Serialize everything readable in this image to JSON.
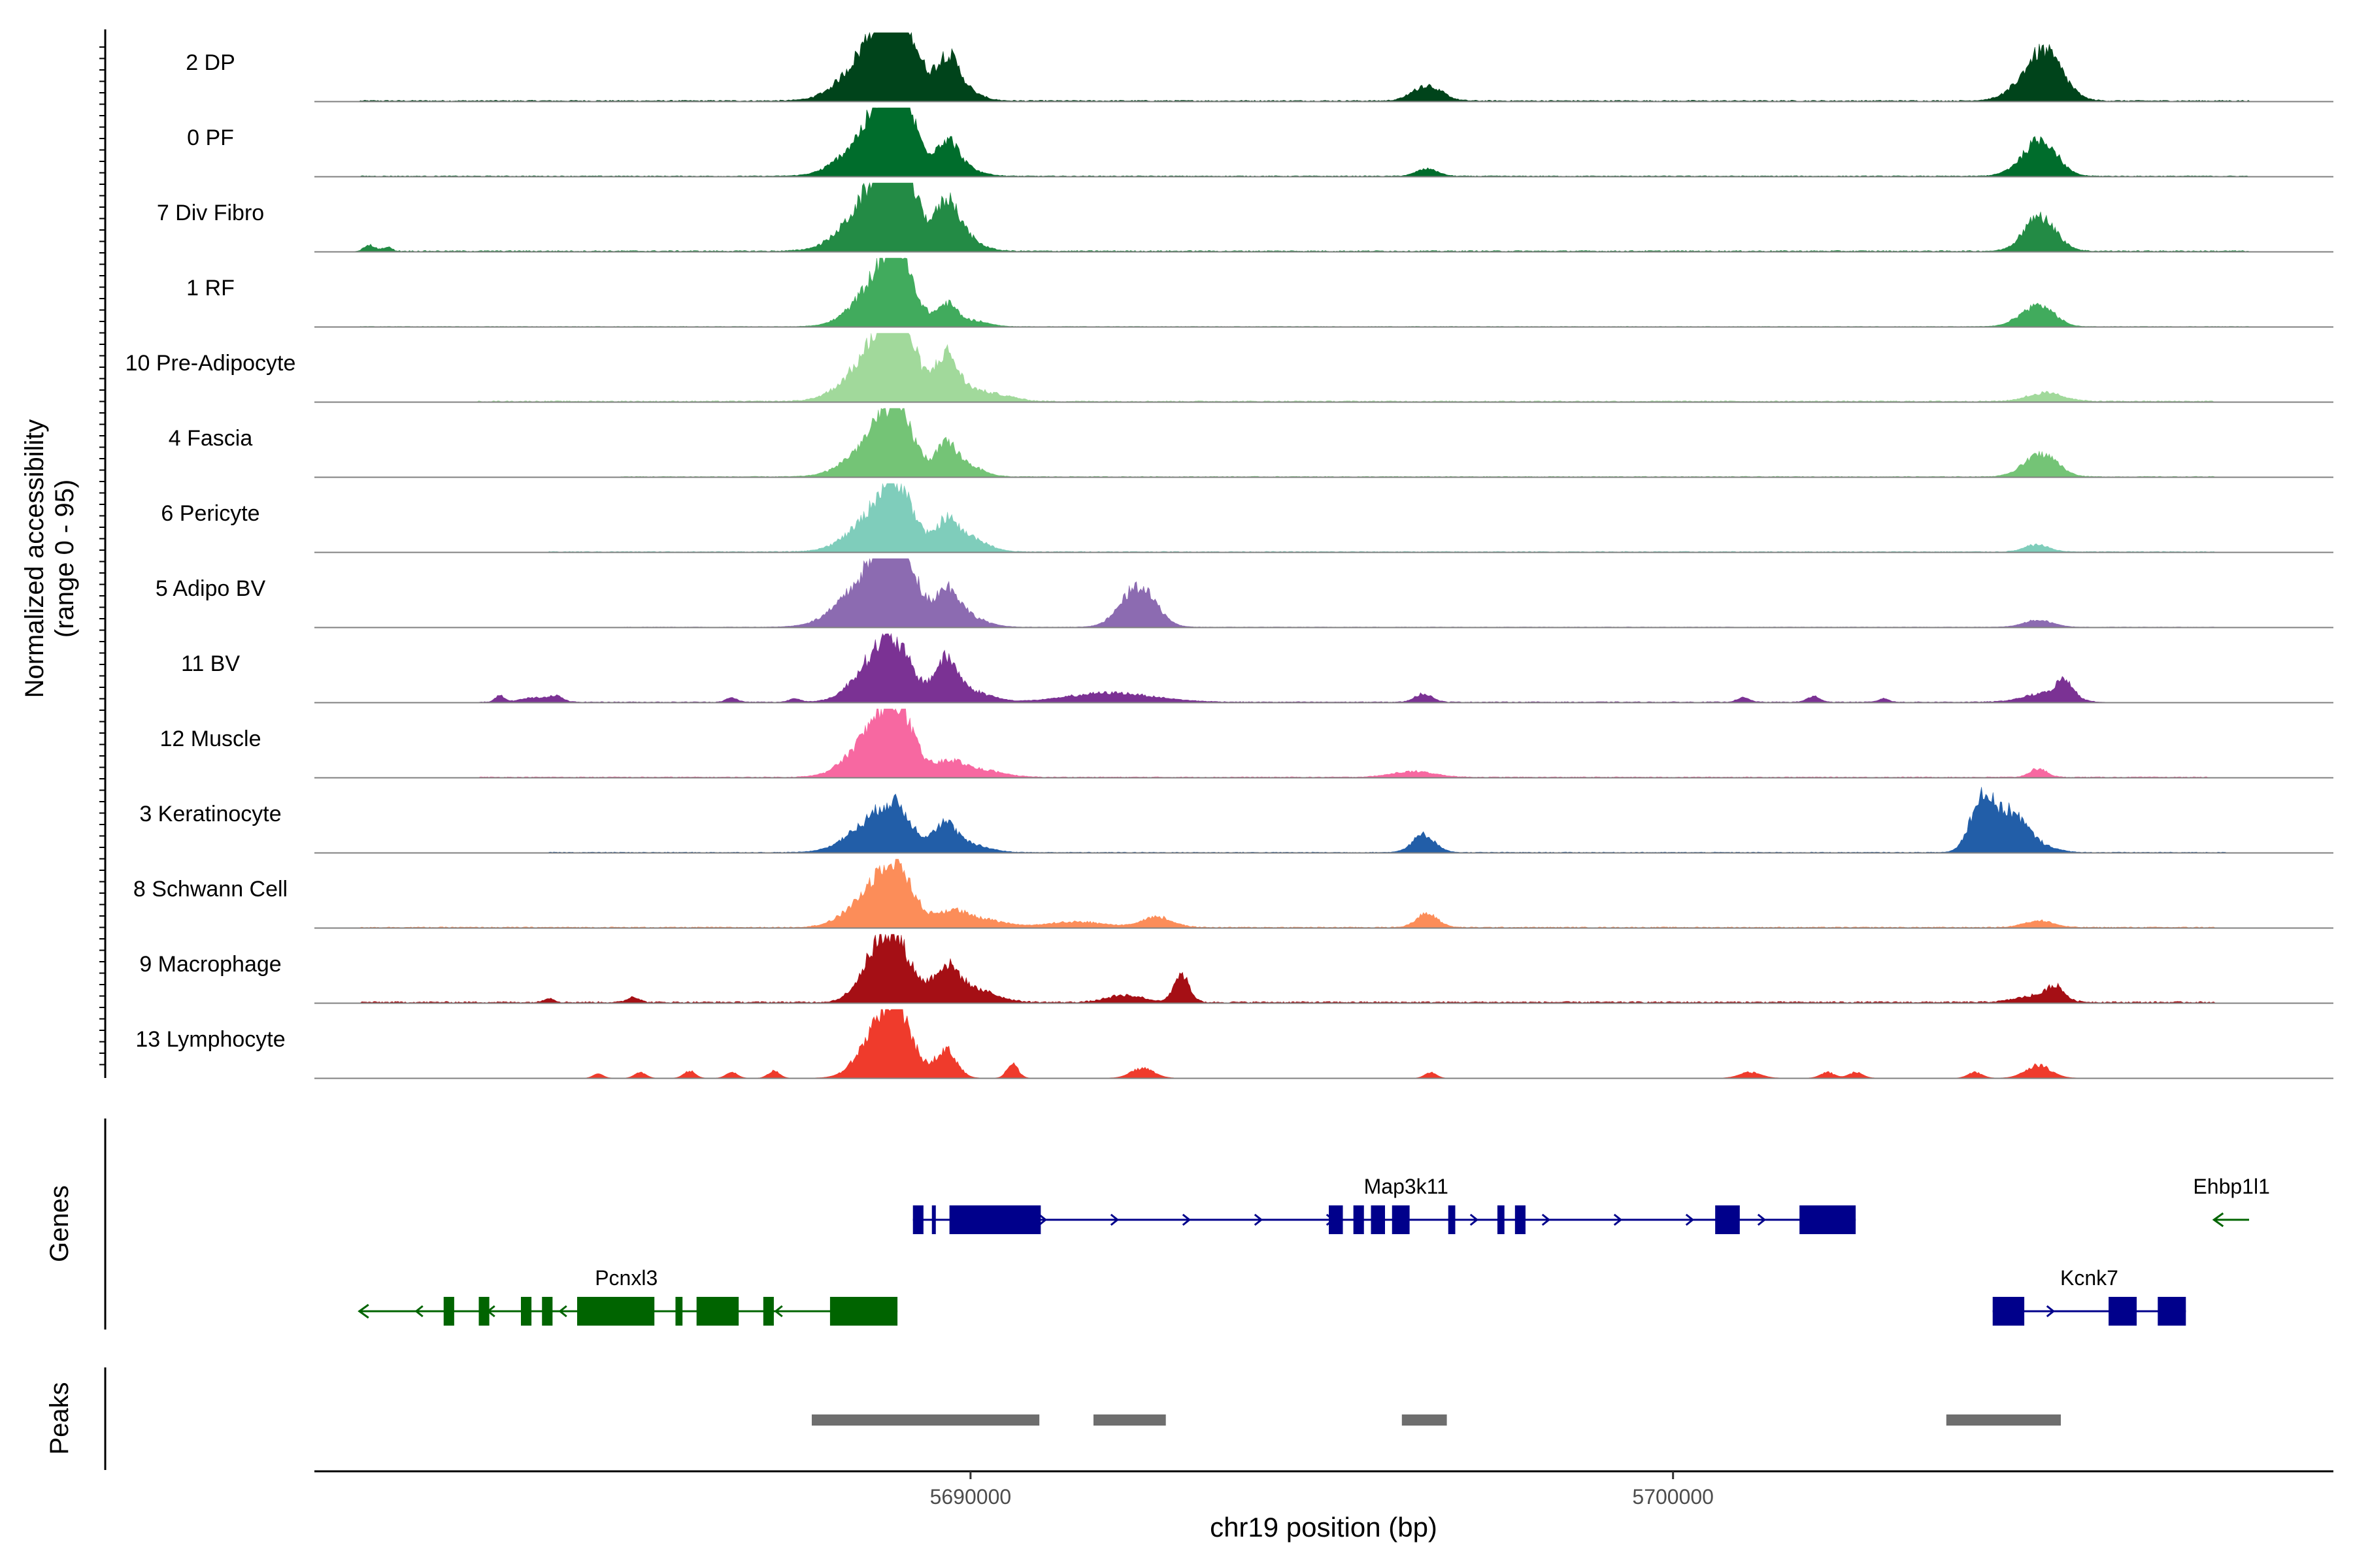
{
  "chart_data": {
    "type": "area",
    "xlabel": "chr19 position (bp)",
    "ylabel": "Normalized accessibility",
    "ylabel_range": "(range 0 - 95)",
    "xlim": [
      5680660,
      5709400
    ],
    "ylim": [
      0,
      95
    ],
    "x_ticks": [
      5690000,
      5700000
    ],
    "x_tick_labels": [
      "5690000",
      "5700000"
    ],
    "panel_labels": {
      "genes": "Genes",
      "peaks": "Peaks"
    },
    "tracks": [
      {
        "name": "2 DP",
        "color": "#00441B",
        "peaks": [
          [
            5688680,
            400,
            80
          ],
          [
            5688950,
            230,
            95
          ],
          [
            5689670,
            150,
            45
          ],
          [
            5689800,
            250,
            20
          ],
          [
            5696500,
            200,
            22
          ],
          [
            5705300,
            250,
            60
          ],
          [
            5705080,
            300,
            15
          ]
        ],
        "baseline": 1.5,
        "noise_range": [
          5681300,
          5708200
        ]
      },
      {
        "name": "0 PF",
        "color": "#006D2C",
        "peaks": [
          [
            5688680,
            400,
            70
          ],
          [
            5688950,
            230,
            85
          ],
          [
            5689670,
            150,
            40
          ],
          [
            5689850,
            250,
            12
          ],
          [
            5696500,
            150,
            10
          ],
          [
            5705150,
            250,
            30
          ],
          [
            5705300,
            200,
            25
          ]
        ],
        "baseline": 1.0,
        "noise_range": [
          5681300,
          5708200
        ]
      },
      {
        "name": "7 Div Fibro",
        "color": "#238B45",
        "peaks": [
          [
            5688680,
            400,
            80
          ],
          [
            5688950,
            230,
            95
          ],
          [
            5689670,
            160,
            55
          ],
          [
            5689850,
            250,
            20
          ],
          [
            5705150,
            200,
            35
          ],
          [
            5705350,
            200,
            20
          ]
        ],
        "baseline": 1.5,
        "noise_range": [
          5681300,
          5708200
        ],
        "bumps": [
          [
            5681450,
            80,
            8
          ],
          [
            5681700,
            60,
            6
          ]
        ]
      },
      {
        "name": "1 RF",
        "color": "#41AB5D",
        "peaks": [
          [
            5688720,
            350,
            60
          ],
          [
            5688950,
            220,
            65
          ],
          [
            5689670,
            140,
            30
          ],
          [
            5690050,
            200,
            8
          ],
          [
            5705120,
            220,
            22
          ],
          [
            5705320,
            180,
            12
          ]
        ],
        "baseline": 0.5,
        "noise_range": [
          5681300,
          5708200
        ]
      },
      {
        "name": "10 Pre-Adipocyte",
        "color": "#A1D99B",
        "peaks": [
          [
            5688700,
            400,
            70
          ],
          [
            5688950,
            230,
            80
          ],
          [
            5689650,
            140,
            50
          ],
          [
            5689850,
            260,
            20
          ],
          [
            5690400,
            250,
            8
          ],
          [
            5705300,
            250,
            12
          ]
        ],
        "baseline": 1.5,
        "noise_range": [
          5683000,
          5707700
        ]
      },
      {
        "name": "4 Fascia",
        "color": "#74C476",
        "peaks": [
          [
            5688700,
            380,
            55
          ],
          [
            5688950,
            220,
            60
          ],
          [
            5689650,
            140,
            35
          ],
          [
            5689900,
            230,
            18
          ],
          [
            5705150,
            220,
            20
          ],
          [
            5705350,
            200,
            16
          ]
        ],
        "baseline": 0.8,
        "noise_range": [
          5685000,
          5707700
        ]
      },
      {
        "name": "6 Pericyte",
        "color": "#7FCDBB",
        "peaks": [
          [
            5688700,
            380,
            52
          ],
          [
            5688950,
            220,
            62
          ],
          [
            5689650,
            140,
            35
          ],
          [
            5689950,
            250,
            22
          ],
          [
            5705180,
            170,
            10
          ]
        ],
        "baseline": 1.0,
        "noise_range": [
          5684000,
          5707700
        ]
      },
      {
        "name": "5 Adipo BV",
        "color": "#8C6BB1",
        "peaks": [
          [
            5688620,
            420,
            70
          ],
          [
            5688950,
            250,
            85
          ],
          [
            5689670,
            160,
            45
          ],
          [
            5689950,
            250,
            15
          ],
          [
            5692350,
            170,
            38
          ],
          [
            5692600,
            180,
            25
          ],
          [
            5692150,
            200,
            15
          ],
          [
            5705200,
            200,
            10
          ]
        ],
        "baseline": 0.5,
        "noise_range": [
          5685000,
          5707700
        ]
      },
      {
        "name": "11 BV",
        "color": "#7B3294",
        "peaks": [
          [
            5688620,
            300,
            50
          ],
          [
            5688950,
            250,
            58
          ],
          [
            5689650,
            160,
            55
          ],
          [
            5690000,
            280,
            15
          ],
          [
            5692000,
            600,
            13
          ],
          [
            5696450,
            120,
            12
          ],
          [
            5705300,
            300,
            12
          ],
          [
            5705580,
            120,
            25
          ]
        ],
        "baseline": 1.0,
        "noise_range": [
          5683000,
          5706000
        ],
        "bumps": [
          [
            5683300,
            60,
            10
          ],
          [
            5683800,
            200,
            6
          ],
          [
            5684100,
            90,
            8
          ],
          [
            5686600,
            80,
            6
          ],
          [
            5687500,
            80,
            5
          ],
          [
            5701000,
            90,
            6
          ],
          [
            5702000,
            90,
            8
          ],
          [
            5703000,
            70,
            5
          ]
        ]
      },
      {
        "name": "12 Muscle",
        "color": "#F768A1",
        "peaks": [
          [
            5688650,
            350,
            60
          ],
          [
            5688950,
            230,
            70
          ],
          [
            5689700,
            200,
            20
          ],
          [
            5690150,
            300,
            10
          ],
          [
            5696300,
            300,
            8
          ],
          [
            5705200,
            120,
            12
          ]
        ],
        "baseline": 1.0,
        "noise_range": [
          5683000,
          5707600
        ]
      },
      {
        "name": "3 Keratinocyte",
        "color": "#225EA8",
        "peaks": [
          [
            5688600,
            350,
            40
          ],
          [
            5688950,
            230,
            45
          ],
          [
            5689630,
            170,
            38
          ],
          [
            5690000,
            260,
            10
          ],
          [
            5696450,
            160,
            25
          ],
          [
            5704380,
            160,
            60
          ],
          [
            5704550,
            200,
            30
          ],
          [
            5704850,
            170,
            38
          ],
          [
            5705100,
            250,
            15
          ]
        ],
        "baseline": 0.8,
        "noise_range": [
          5684000,
          5707900
        ]
      },
      {
        "name": "8 Schwann Cell",
        "color": "#FC8D59",
        "peaks": [
          [
            5688650,
            350,
            50
          ],
          [
            5688950,
            230,
            60
          ],
          [
            5689700,
            200,
            18
          ],
          [
            5690100,
            350,
            12
          ],
          [
            5691500,
            400,
            8
          ],
          [
            5692650,
            220,
            15
          ],
          [
            5696500,
            150,
            20
          ],
          [
            5705200,
            200,
            10
          ]
        ],
        "baseline": 1.2,
        "noise_range": [
          5681300,
          5707700
        ]
      },
      {
        "name": "9 Macrophage",
        "color": "#A50F15",
        "peaks": [
          [
            5688650,
            240,
            52
          ],
          [
            5688950,
            240,
            70
          ],
          [
            5689650,
            180,
            45
          ],
          [
            5690050,
            300,
            18
          ],
          [
            5693000,
            110,
            40
          ],
          [
            5692200,
            250,
            10
          ],
          [
            5705200,
            280,
            10
          ],
          [
            5705450,
            110,
            18
          ]
        ],
        "baseline": 2.0,
        "noise_range": [
          5681300,
          5707700
        ],
        "bumps": [
          [
            5685200,
            80,
            8
          ],
          [
            5684000,
            70,
            6
          ]
        ]
      },
      {
        "name": "13 Lymphocyte",
        "color": "#EF3B2C",
        "peaks": [
          [
            5688650,
            260,
            50
          ],
          [
            5688950,
            230,
            80
          ],
          [
            5689650,
            150,
            40
          ],
          [
            5690600,
            80,
            20
          ],
          [
            5692450,
            160,
            14
          ],
          [
            5705200,
            180,
            18
          ]
        ],
        "baseline": 0,
        "noise_range": [
          5684000,
          5706000
        ],
        "bumps": [
          [
            5685300,
            80,
            8
          ],
          [
            5684700,
            70,
            6
          ],
          [
            5686000,
            80,
            10
          ],
          [
            5686600,
            80,
            8
          ],
          [
            5687200,
            80,
            10
          ],
          [
            5696550,
            80,
            8
          ],
          [
            5701100,
            150,
            8
          ],
          [
            5702200,
            100,
            8
          ],
          [
            5702600,
            100,
            8
          ],
          [
            5704300,
            100,
            8
          ]
        ]
      }
    ],
    "genes": [
      {
        "name": "Map3k11",
        "strand": "+",
        "color": "#00008B",
        "start": 5689180,
        "end": 5702600,
        "row": 1,
        "exons": [
          [
            5689180,
            5689330
          ],
          [
            5689450,
            5689500
          ],
          [
            5689700,
            5691000
          ],
          [
            5695100,
            5695300
          ],
          [
            5695450,
            5695600
          ],
          [
            5695700,
            5695900
          ],
          [
            5696000,
            5696250
          ],
          [
            5696800,
            5696900
          ],
          [
            5697500,
            5697600
          ],
          [
            5697750,
            5697900
          ],
          [
            5700600,
            5700950
          ],
          [
            5701800,
            5702600
          ]
        ]
      },
      {
        "name": "Pcnxl3",
        "strand": "-",
        "color": "#006400",
        "start": 5681300,
        "end": 5688960,
        "row": 2,
        "exons": [
          [
            5682500,
            5682650
          ],
          [
            5683000,
            5683150
          ],
          [
            5683600,
            5683750
          ],
          [
            5683900,
            5684050
          ],
          [
            5684400,
            5685500
          ],
          [
            5685800,
            5685900
          ],
          [
            5686100,
            5686700
          ],
          [
            5687050,
            5687200
          ],
          [
            5688000,
            5688960
          ]
        ]
      },
      {
        "name": "Kcnk7",
        "strand": "+",
        "color": "#00008B",
        "start": 5704550,
        "end": 5707300,
        "row": 2,
        "exons": [
          [
            5704550,
            5705000
          ],
          [
            5706200,
            5706600
          ],
          [
            5706900,
            5707300
          ]
        ]
      },
      {
        "name": "Ehbp1l1",
        "strand": "-",
        "color": "#006400",
        "start": 5707700,
        "end": 5708200,
        "row": 1,
        "exons": []
      }
    ],
    "peaks": [
      [
        5687740,
        5690980
      ],
      [
        5691750,
        5692780
      ],
      [
        5696140,
        5696780
      ],
      [
        5703890,
        5705520
      ]
    ],
    "peak_color": "#6E6E6E"
  }
}
